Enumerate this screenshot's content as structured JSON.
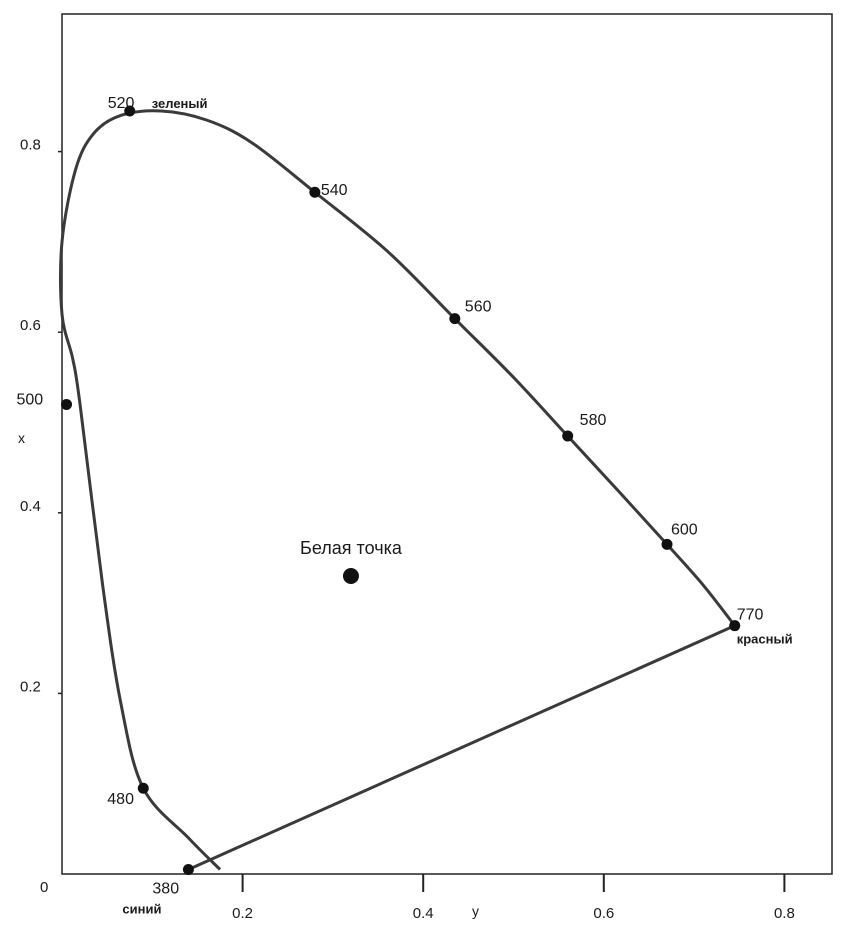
{
  "chart_data": {
    "type": "scatter",
    "title": "",
    "xlabel": "y",
    "ylabel": "x",
    "xlim": [
      0,
      0.85
    ],
    "ylim": [
      0,
      0.95
    ],
    "x_ticks": [
      "0.2",
      "0.4",
      "0.6",
      "0.8"
    ],
    "y_ticks": [
      "0.2",
      "0.4",
      "0.6",
      "0.8"
    ],
    "origin_label": "0",
    "grid": false,
    "colors": {
      "curve": "#3a3a3a",
      "point": "#111111",
      "axis": "#222222"
    },
    "spectral_locus": [
      [
        0.175,
        0.005
      ],
      [
        0.14,
        0.04
      ],
      [
        0.09,
        0.095
      ],
      [
        0.065,
        0.19
      ],
      [
        0.045,
        0.32
      ],
      [
        0.02,
        0.52
      ],
      [
        0.012,
        0.57
      ],
      [
        0.0,
        0.62
      ],
      [
        0.0,
        0.7
      ],
      [
        0.015,
        0.78
      ],
      [
        0.035,
        0.82
      ],
      [
        0.065,
        0.84
      ],
      [
        0.11,
        0.845
      ],
      [
        0.16,
        0.835
      ],
      [
        0.21,
        0.81
      ],
      [
        0.28,
        0.755
      ],
      [
        0.36,
        0.69
      ],
      [
        0.435,
        0.615
      ],
      [
        0.5,
        0.55
      ],
      [
        0.56,
        0.485
      ],
      [
        0.62,
        0.42
      ],
      [
        0.67,
        0.365
      ],
      [
        0.71,
        0.32
      ],
      [
        0.745,
        0.275
      ]
    ],
    "purple_line": [
      [
        0.745,
        0.275
      ],
      [
        0.14,
        0.005
      ]
    ],
    "labeled_points": [
      {
        "label": "520",
        "color_name": "зеленый",
        "x": 0.075,
        "y": 0.845
      },
      {
        "label": "540",
        "color_name": "",
        "x": 0.28,
        "y": 0.755
      },
      {
        "label": "560",
        "color_name": "",
        "x": 0.435,
        "y": 0.615
      },
      {
        "label": "580",
        "color_name": "",
        "x": 0.56,
        "y": 0.485
      },
      {
        "label": "600",
        "color_name": "",
        "x": 0.67,
        "y": 0.365
      },
      {
        "label": "770",
        "color_name": "красный",
        "x": 0.745,
        "y": 0.275
      },
      {
        "label": "500",
        "color_name": "",
        "x": 0.005,
        "y": 0.52
      },
      {
        "label": "480",
        "color_name": "",
        "x": 0.09,
        "y": 0.095
      },
      {
        "label": "380",
        "color_name": "синий",
        "x": 0.14,
        "y": 0.005
      }
    ],
    "white_point": {
      "label": "Белая точка",
      "x": 0.32,
      "y": 0.33
    }
  }
}
